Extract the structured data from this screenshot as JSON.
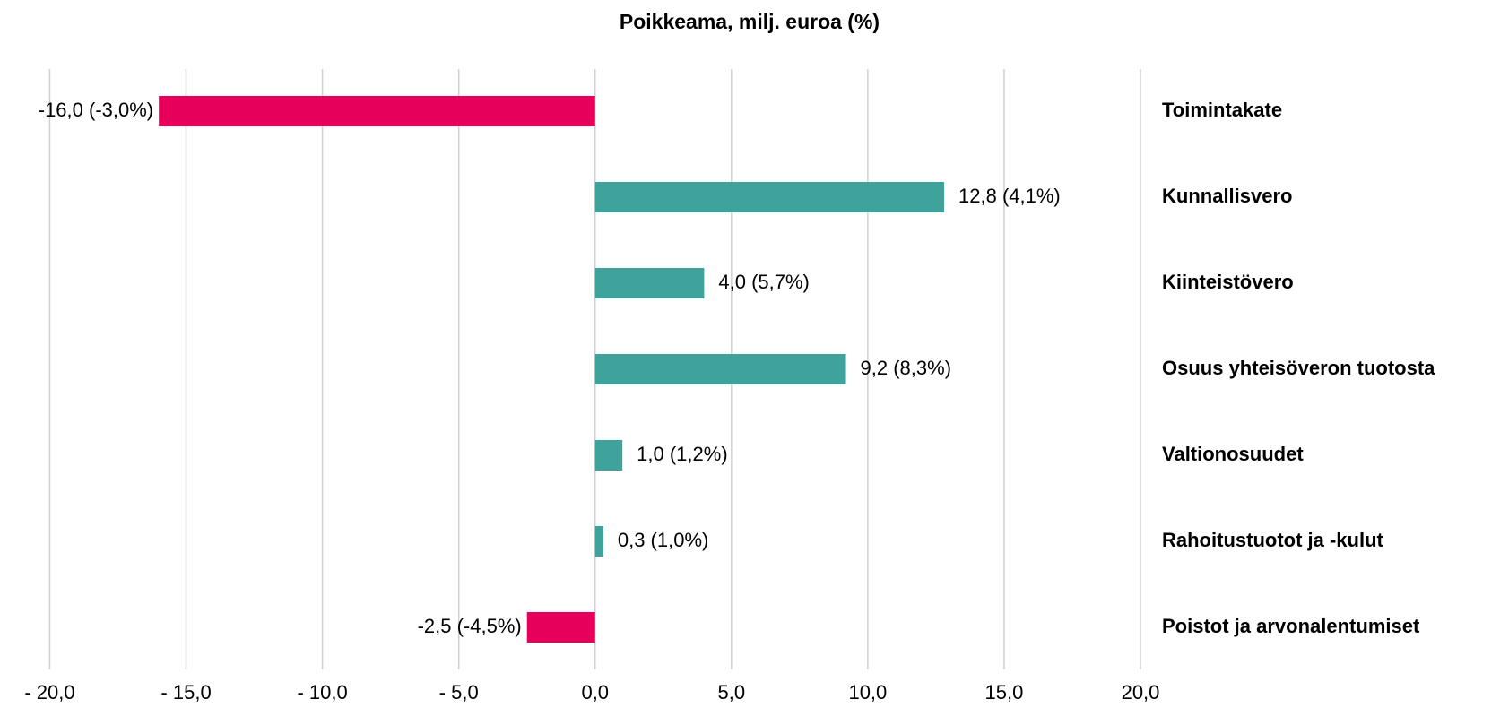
{
  "chart_data": {
    "type": "hbar",
    "title": "Poikkeama, milj. euroa (%)",
    "categories": [
      "Toimintakate",
      "Kunnallisvero",
      "Kiinteistövero",
      "Osuus yhteisöveron tuotosta",
      "Valtionosuudet",
      "Rahoitustuotot ja -kulut",
      "Poistot ja arvonalentumiset"
    ],
    "values": [
      -16.0,
      12.8,
      4.0,
      9.2,
      1.0,
      0.3,
      -2.5
    ],
    "value_labels": [
      "-16,0 (-3,0%)",
      "12,8 (4,1%)",
      "4,0 (5,7%)",
      "9,2 (8,3%)",
      "1,0 (1,2%)",
      "0,3 (1,0%)",
      "-2,5 (-4,5%)"
    ],
    "colors": [
      "#e6005c",
      "#3fa39b",
      "#3fa39b",
      "#3fa39b",
      "#3fa39b",
      "#3fa39b",
      "#e6005c"
    ],
    "xlim": [
      -20,
      20
    ],
    "xticks": [
      {
        "value": -20,
        "label": "- 20,0"
      },
      {
        "value": -15,
        "label": "- 15,0"
      },
      {
        "value": -10,
        "label": "- 10,0"
      },
      {
        "value": -5,
        "label": "- 5,0"
      },
      {
        "value": 0,
        "label": "0,0"
      },
      {
        "value": 5,
        "label": "5,0"
      },
      {
        "value": 10,
        "label": "10,0"
      },
      {
        "value": 15,
        "label": "15,0"
      },
      {
        "value": 20,
        "label": "20,0"
      }
    ],
    "grid": true
  }
}
